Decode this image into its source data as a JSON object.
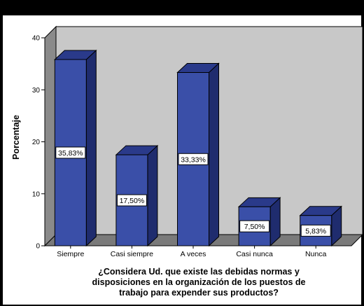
{
  "chart_data": {
    "type": "bar",
    "categories": [
      "Siempre",
      "Casi siempre",
      "A veces",
      "Casi nunca",
      "Nunca"
    ],
    "values": [
      35.83,
      17.5,
      33.33,
      7.5,
      5.83
    ],
    "data_labels": [
      "35,83%",
      "17,50%",
      "33,33%",
      "7,50%",
      "5,83%"
    ],
    "ylabel": "Porcentaje",
    "xlabel_lines": [
      "¿Considera Ud. que existe las debidas normas y",
      "disposiciones en la organización de los puestos de",
      "trabajo para expender sus productos?"
    ],
    "yticks": [
      0,
      10,
      20,
      30,
      40
    ],
    "ylim": [
      0,
      40
    ],
    "bar_color": "#3a4fa8",
    "bar_side_color": "#1f2c6e",
    "bar_top_color": "#2a3a8a",
    "plot_bg": "#c8c8c8",
    "chart_bg": "#ffffff"
  }
}
